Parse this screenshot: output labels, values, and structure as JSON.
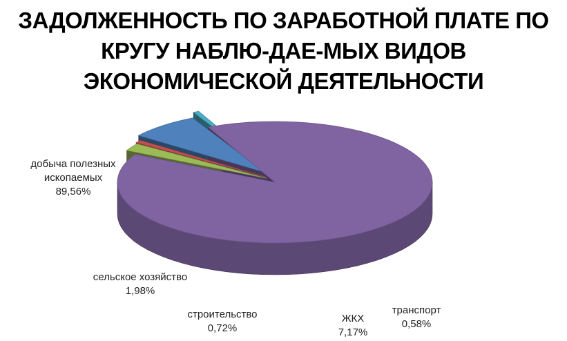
{
  "chart_data": {
    "type": "pie",
    "title_lines": [
      "ЗАДОЛЖЕННОСТЬ ПО ЗАРАБОТНОЙ ПЛАТЕ ПО",
      "КРУГУ НАБЛЮ-ДАЕ-МЫХ ВИДОВ",
      "ЭКОНОМИЧЕСКОЙ ДЕЯТЕЛЬНОСТИ"
    ],
    "slices": [
      {
        "label_lines": [
          "добыча полезных",
          "ископаемых"
        ],
        "value": 89.56,
        "value_label": "89,56%",
        "color": "#8064A2"
      },
      {
        "label_lines": [
          "сельское хозяйство"
        ],
        "value": 1.98,
        "value_label": "1,98%",
        "color": "#9BBB59"
      },
      {
        "label_lines": [
          "строительство"
        ],
        "value": 0.72,
        "value_label": "0,72%",
        "color": "#C0504D"
      },
      {
        "label_lines": [
          "ЖКХ"
        ],
        "value": 7.17,
        "value_label": "7,17%",
        "color": "#4F81BD"
      },
      {
        "label_lines": [
          "транспорт"
        ],
        "value": 0.58,
        "value_label": "0,58%",
        "color": "#4BACC6"
      }
    ]
  }
}
